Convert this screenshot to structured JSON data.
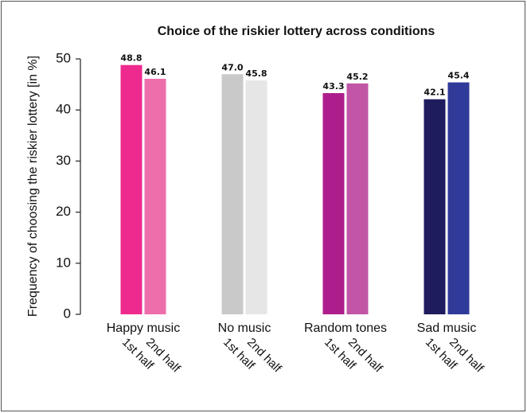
{
  "chart_data": {
    "type": "bar",
    "title": "Choice of the riskier lottery across conditions",
    "y_label": "Frequency of choosing the riskier lottery [in %]",
    "categories": [
      "Happy music",
      "No music",
      "Random tones",
      "Sad music"
    ],
    "series": [
      {
        "name": "1st half",
        "colors": [
          "#ee2a8e",
          "#c9c9c9",
          "#ae1d8c",
          "#1f1c5e"
        ],
        "values": [
          48.8,
          47.0,
          43.3,
          42.1
        ],
        "value_labels": [
          "48.8",
          "47.0",
          "43.3",
          "42.1"
        ]
      },
      {
        "name": "2nd half",
        "colors": [
          "#ee6eac",
          "#e6e6e6",
          "#c255a6",
          "#303a99"
        ],
        "values": [
          46.1,
          45.8,
          45.2,
          45.4
        ],
        "value_labels": [
          "46.1",
          "45.8",
          "45.2",
          "45.4"
        ]
      }
    ],
    "ylim": [
      0,
      50
    ],
    "yticks": [
      0,
      10,
      20,
      30,
      40,
      50
    ],
    "grid": false
  }
}
